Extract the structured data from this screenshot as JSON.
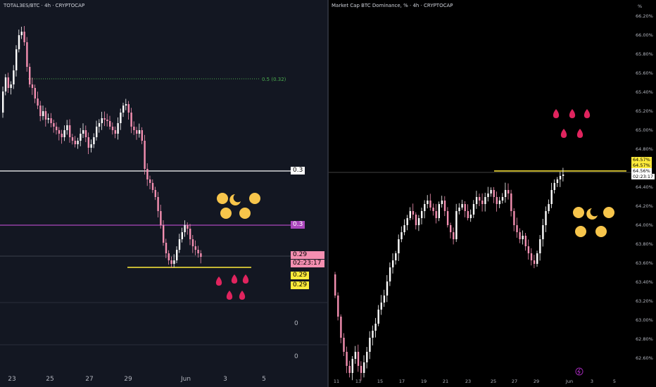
{
  "charts": [
    {
      "title": "TOTAL3ES/BTC · 4h · CRYPTOCAP",
      "chart_data": {
        "type": "candlestick",
        "x_labels": [
          "23",
          "25",
          "27",
          "29",
          "Jun",
          "3",
          "5"
        ],
        "levels": [
          {
            "name": "fib-0.5",
            "label": "0.5 (0.32)",
            "color": "#4caf50"
          },
          {
            "name": "white-line",
            "label": "0.3",
            "color": "#ffffff"
          },
          {
            "name": "purple-line",
            "label": "0.3",
            "color": "#ab47bc"
          },
          {
            "name": "yellow-line",
            "label": "0.29",
            "color": "#ffeb3b"
          }
        ],
        "last_price": "0.29",
        "countdown": "02:23:17",
        "axis_labels": [
          "0.29",
          "0",
          "0"
        ]
      }
    },
    {
      "title": "Market Cap BTC Dominance, % · 4h · CRYPTOCAP",
      "chart_data": {
        "type": "candlestick",
        "unit": "%",
        "y_ticks": [
          "66.20%",
          "66.00%",
          "65.80%",
          "65.60%",
          "65.40%",
          "65.20%",
          "65.00%",
          "64.80%",
          "64.40%",
          "64.20%",
          "64.00%",
          "63.80%",
          "63.60%",
          "63.40%",
          "63.20%",
          "63.00%",
          "62.80%",
          "62.60%"
        ],
        "x_labels": [
          "11",
          "13",
          "15",
          "17",
          "19",
          "21",
          "23",
          "25",
          "27",
          "29",
          "Jun",
          "3",
          "5"
        ],
        "price_labels": [
          "64.57%",
          "64.57%",
          "64.56%",
          "02:23:17"
        ],
        "yellow_line": "64.57%"
      }
    }
  ],
  "colors": {
    "up": "#ffffff",
    "down": "#f48fb1",
    "left_bg": "#131722",
    "right_bg": "#000000",
    "yellow": "#ffeb3b",
    "purple": "#ab47bc"
  }
}
